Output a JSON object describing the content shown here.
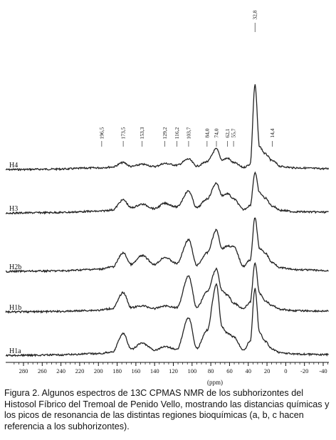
{
  "chart_data": {
    "type": "line",
    "xlabel": "(ppm)",
    "ylabel": "",
    "xlim": [
      290,
      -45
    ],
    "x_reversed": true,
    "x_ticks": [
      280,
      260,
      240,
      220,
      200,
      180,
      160,
      140,
      120,
      100,
      80,
      60,
      40,
      20,
      0,
      -20,
      -40
    ],
    "peak_labels": [
      "196,5",
      "173,5",
      "153,3",
      "129,2",
      "116,2",
      "103,7",
      "84,0",
      "74,0",
      "62,1",
      "55,7",
      "32,8",
      "14,4"
    ],
    "peak_positions": [
      196.5,
      173.5,
      153.3,
      129.2,
      116.2,
      103.7,
      84.0,
      74.0,
      62.1,
      55.7,
      32.8,
      14.4
    ],
    "series": [
      {
        "name": "H4",
        "x": [
          290,
          240,
          200,
          185,
          173.5,
          165,
          153.3,
          140,
          129.2,
          116.2,
          103.7,
          95,
          84,
          74,
          68,
          62.1,
          55.7,
          45,
          38,
          32.8,
          28,
          22,
          14.4,
          5,
          -10,
          -45
        ],
        "y": [
          0.0,
          0.0,
          0.02,
          0.04,
          0.14,
          0.05,
          0.1,
          0.05,
          0.12,
          0.08,
          0.22,
          0.06,
          0.16,
          0.45,
          0.2,
          0.24,
          0.14,
          0.03,
          0.1,
          1.9,
          0.5,
          0.34,
          0.18,
          0.05,
          0.02,
          0.0
        ]
      },
      {
        "name": "H3",
        "x": [
          290,
          240,
          200,
          185,
          173.5,
          165,
          153.3,
          140,
          129.2,
          116.2,
          103.7,
          95,
          84,
          74,
          68,
          62.1,
          55.7,
          45,
          38,
          32.8,
          28,
          22,
          14.4,
          5,
          -10,
          -45
        ],
        "y": [
          0.0,
          0.0,
          0.02,
          0.05,
          0.28,
          0.1,
          0.18,
          0.08,
          0.2,
          0.12,
          0.48,
          0.1,
          0.3,
          0.66,
          0.38,
          0.42,
          0.3,
          0.06,
          0.15,
          0.9,
          0.44,
          0.32,
          0.14,
          0.04,
          0.01,
          0.0
        ]
      },
      {
        "name": "H2b",
        "x": [
          290,
          240,
          200,
          185,
          173.5,
          165,
          153.3,
          140,
          129.2,
          116.2,
          103.7,
          95,
          84,
          74,
          68,
          62.1,
          55.7,
          45,
          38,
          32.8,
          28,
          22,
          14.4,
          5,
          -10,
          -45
        ],
        "y": [
          0.0,
          0.0,
          0.03,
          0.08,
          0.4,
          0.14,
          0.34,
          0.14,
          0.3,
          0.16,
          0.7,
          0.12,
          0.4,
          0.92,
          0.5,
          0.56,
          0.54,
          0.1,
          0.24,
          1.2,
          0.5,
          0.4,
          0.18,
          0.06,
          0.02,
          0.0
        ]
      },
      {
        "name": "H1b",
        "x": [
          290,
          240,
          200,
          185,
          173.5,
          165,
          153.3,
          140,
          129.2,
          116.2,
          103.7,
          95,
          84,
          74,
          68,
          62.1,
          55.7,
          45,
          38,
          32.8,
          28,
          22,
          14.4,
          5,
          -10,
          -45
        ],
        "y": [
          0.0,
          0.0,
          0.02,
          0.06,
          0.42,
          0.08,
          0.12,
          0.06,
          0.12,
          0.08,
          0.8,
          0.08,
          0.44,
          0.96,
          0.46,
          0.36,
          0.18,
          0.06,
          0.2,
          1.1,
          0.4,
          0.24,
          0.12,
          0.04,
          0.01,
          0.0
        ]
      },
      {
        "name": "H1a",
        "x": [
          290,
          240,
          200,
          185,
          173.5,
          165,
          153.3,
          140,
          129.2,
          116.2,
          103.7,
          95,
          84,
          74,
          68,
          62.1,
          55.7,
          45,
          38,
          32.8,
          28,
          22,
          14.4,
          5,
          -10,
          -45
        ],
        "y": [
          0.0,
          0.0,
          0.02,
          0.06,
          0.48,
          0.12,
          0.26,
          0.1,
          0.18,
          0.12,
          0.84,
          0.14,
          0.55,
          1.6,
          0.62,
          0.48,
          0.4,
          0.1,
          0.3,
          1.5,
          0.5,
          0.3,
          0.12,
          0.04,
          0.01,
          0.0
        ]
      }
    ]
  },
  "caption": "Figura 2. Algunos espectros de 13C CPMAS NMR de los subhorizontes del Histosol Fíbrico del Tremoal de Penido Vello, mostrando las distancias químicas y los picos de resonancia de las distintas regiones bioquímicas (a, b, c hacen referencia a los subhorizontes).",
  "colors": {
    "trace": "#222222",
    "axis": "#111111",
    "background": "#ffffff"
  }
}
